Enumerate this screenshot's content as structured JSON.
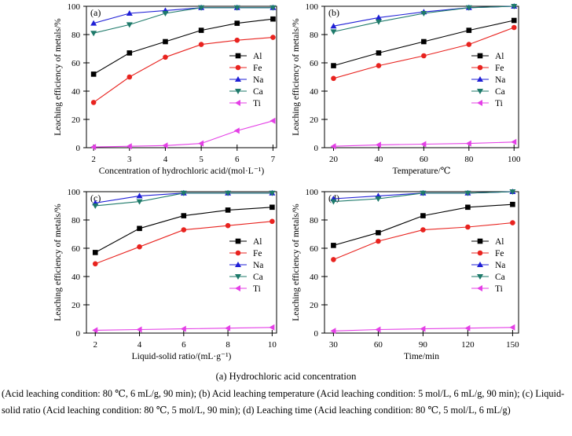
{
  "chart_data": [
    {
      "type": "line",
      "panel_label": "(a)",
      "xlabel": "Concentration of hydrochloric acid/(mol·L⁻¹)",
      "ylabel": "Leaching efficiency of metals/%",
      "xlim": [
        1.8,
        7.1
      ],
      "ylim": [
        0,
        100
      ],
      "xticks": [
        2,
        3,
        4,
        5,
        6,
        7
      ],
      "yticks": [
        0,
        20,
        40,
        60,
        80,
        100
      ],
      "legend_position": "right",
      "series": [
        {
          "name": "Al",
          "x": [
            2,
            3,
            4,
            5,
            6,
            7
          ],
          "values": [
            52,
            67,
            75,
            83,
            88,
            91
          ]
        },
        {
          "name": "Fe",
          "x": [
            2,
            3,
            4,
            5,
            6,
            7
          ],
          "values": [
            32,
            50,
            64,
            73,
            76,
            78
          ]
        },
        {
          "name": "Na",
          "x": [
            2,
            3,
            4,
            5,
            6,
            7
          ],
          "values": [
            88,
            95,
            97,
            99,
            99,
            99
          ]
        },
        {
          "name": "Ca",
          "x": [
            2,
            3,
            4,
            5,
            6,
            7
          ],
          "values": [
            81,
            87,
            95,
            99,
            99,
            99
          ]
        },
        {
          "name": "Ti",
          "x": [
            2,
            3,
            4,
            5,
            6,
            7
          ],
          "values": [
            0.5,
            1,
            1.5,
            3,
            12,
            19
          ]
        }
      ]
    },
    {
      "type": "line",
      "panel_label": "(b)",
      "xlabel": "Temperature/℃",
      "ylabel": "Leaching efficiency of metals/%",
      "xlim": [
        16,
        102
      ],
      "ylim": [
        0,
        100
      ],
      "xticks": [
        20,
        40,
        60,
        80,
        100
      ],
      "yticks": [
        0,
        20,
        40,
        60,
        80,
        100
      ],
      "legend_position": "right",
      "series": [
        {
          "name": "Al",
          "x": [
            20,
            40,
            60,
            80,
            100
          ],
          "values": [
            58,
            67,
            75,
            83,
            90
          ]
        },
        {
          "name": "Fe",
          "x": [
            20,
            40,
            60,
            80,
            100
          ],
          "values": [
            49,
            58,
            65,
            73,
            85
          ]
        },
        {
          "name": "Na",
          "x": [
            20,
            40,
            60,
            80,
            100
          ],
          "values": [
            86,
            92,
            96,
            99,
            100
          ]
        },
        {
          "name": "Ca",
          "x": [
            20,
            40,
            60,
            80,
            100
          ],
          "values": [
            82,
            89,
            95,
            99,
            100
          ]
        },
        {
          "name": "Ti",
          "x": [
            20,
            40,
            60,
            80,
            100
          ],
          "values": [
            1,
            2,
            2.5,
            3,
            4
          ]
        }
      ]
    },
    {
      "type": "line",
      "panel_label": "(c)",
      "xlabel": "Liquid-solid ratio/(mL·g⁻¹)",
      "ylabel": "Leaching efficiency of metals/%",
      "xlim": [
        1.6,
        10.2
      ],
      "ylim": [
        0,
        100
      ],
      "xticks": [
        2,
        4,
        6,
        8,
        10
      ],
      "yticks": [
        0,
        20,
        40,
        60,
        80,
        100
      ],
      "legend_position": "right",
      "series": [
        {
          "name": "Al",
          "x": [
            2,
            4,
            6,
            8,
            10
          ],
          "values": [
            57,
            74,
            83,
            87,
            89
          ]
        },
        {
          "name": "Fe",
          "x": [
            2,
            4,
            6,
            8,
            10
          ],
          "values": [
            49,
            61,
            73,
            76,
            79
          ]
        },
        {
          "name": "Na",
          "x": [
            2,
            4,
            6,
            8,
            10
          ],
          "values": [
            92,
            97,
            99,
            99,
            99
          ]
        },
        {
          "name": "Ca",
          "x": [
            2,
            4,
            6,
            8,
            10
          ],
          "values": [
            90,
            93,
            99,
            99,
            99
          ]
        },
        {
          "name": "Ti",
          "x": [
            2,
            4,
            6,
            8,
            10
          ],
          "values": [
            2,
            2.5,
            3,
            3.5,
            4
          ]
        }
      ]
    },
    {
      "type": "line",
      "panel_label": "(d)",
      "xlabel": "Time/min",
      "ylabel": "Leaching efficiency of metals/%",
      "xlim": [
        24,
        154
      ],
      "ylim": [
        0,
        100
      ],
      "xticks": [
        30,
        60,
        90,
        120,
        150
      ],
      "yticks": [
        0,
        20,
        40,
        60,
        80,
        100
      ],
      "legend_position": "right",
      "series": [
        {
          "name": "Al",
          "x": [
            30,
            60,
            90,
            120,
            150
          ],
          "values": [
            62,
            71,
            83,
            89,
            91
          ]
        },
        {
          "name": "Fe",
          "x": [
            30,
            60,
            90,
            120,
            150
          ],
          "values": [
            52,
            65,
            73,
            75,
            78
          ]
        },
        {
          "name": "Na",
          "x": [
            30,
            60,
            90,
            120,
            150
          ],
          "values": [
            95,
            97,
            99,
            99,
            100
          ]
        },
        {
          "name": "Ca",
          "x": [
            30,
            60,
            90,
            120,
            150
          ],
          "values": [
            93,
            95,
            99,
            99,
            100
          ]
        },
        {
          "name": "Ti",
          "x": [
            30,
            60,
            90,
            120,
            150
          ],
          "values": [
            1.5,
            2.5,
            3,
            3.5,
            4
          ]
        }
      ]
    }
  ],
  "series_colors": {
    "Al": "#000000",
    "Fe": "#e8231f",
    "Na": "#1f1fd6",
    "Ca": "#1e7a6a",
    "Ti": "#e43fe6"
  },
  "series_markers": {
    "Al": "square",
    "Fe": "circle",
    "Na": "triangle-up",
    "Ca": "triangle-down",
    "Ti": "triangle-left"
  },
  "caption": {
    "title": "(a) Hydrochloric acid concentration",
    "body": "(Acid leaching condition: 80 ℃, 6 mL/g, 90 min); (b) Acid leaching temperature (Acid leaching condition: 5 mol/L, 6 mL/g, 90 min); (c) Liquid-solid ratio (Acid leaching condition: 80 ℃, 5 mol/L, 90 min); (d) Leaching time (Acid leaching condition: 80 ℃, 5 mol/L, 6 mL/g)"
  }
}
